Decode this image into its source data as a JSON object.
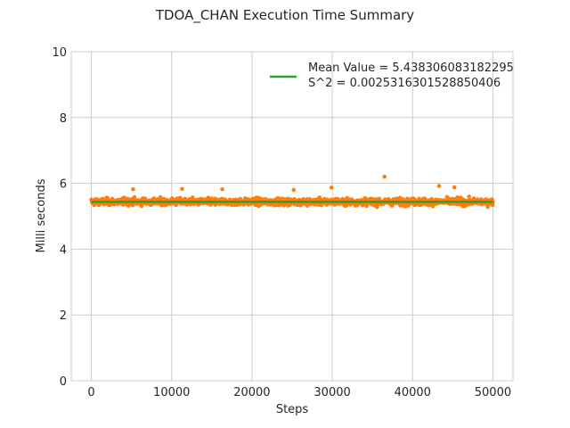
{
  "chart_data": {
    "type": "scatter",
    "title": "TDOA_CHAN Execution Time Summary",
    "xlabel": "Steps",
    "ylabel": "Milli seconds",
    "xlim": [
      -2500,
      52500
    ],
    "ylim": [
      0,
      10
    ],
    "xticks": [
      0,
      10000,
      20000,
      30000,
      40000,
      50000
    ],
    "yticks": [
      0,
      2,
      4,
      6,
      8,
      10
    ],
    "grid": true,
    "legend_position": "top-right",
    "series": [
      {
        "kind": "scatter",
        "color": "#ff7f0e",
        "n_points": 50000,
        "x_range": [
          0,
          50000
        ],
        "mean": 5.438306083182295,
        "variance": 0.0025316301528850406,
        "outliers": [
          {
            "x": 36500,
            "y": 6.2
          },
          {
            "x": 43300,
            "y": 5.92
          },
          {
            "x": 45200,
            "y": 5.88
          },
          {
            "x": 29900,
            "y": 5.87
          },
          {
            "x": 5200,
            "y": 5.82
          },
          {
            "x": 11300,
            "y": 5.83
          },
          {
            "x": 16300,
            "y": 5.82
          },
          {
            "x": 25200,
            "y": 5.8
          }
        ]
      },
      {
        "kind": "line",
        "color": "#2ca02c",
        "name": "Mean Value = 5.438306083182295\nS^2 = 0.0025316301528850406",
        "x": [
          0,
          50000
        ],
        "y": [
          5.438306083182295,
          5.438306083182295
        ]
      }
    ],
    "legend": {
      "line1": "Mean Value = 5.438306083182295",
      "line2": "S^2 = 0.0025316301528850406"
    }
  }
}
